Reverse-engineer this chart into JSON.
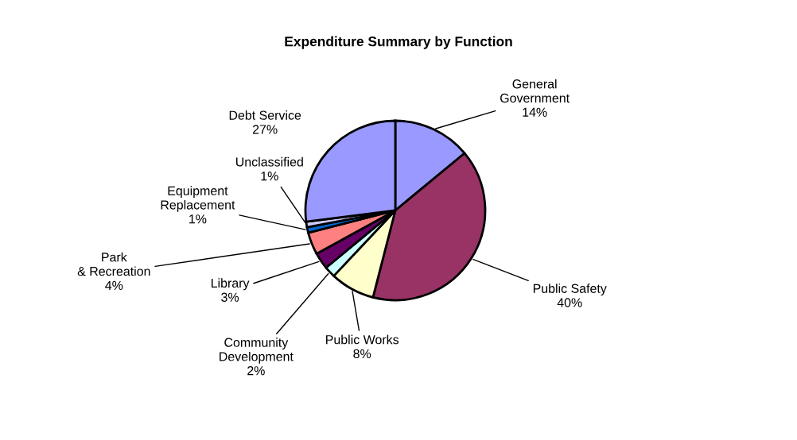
{
  "chart_data": {
    "type": "pie",
    "title": "Expenditure Summary by Function",
    "categories": [
      "General Government",
      "Public Safety",
      "Public Works",
      "Community Development",
      "Library",
      "Park & Recreation",
      "Equipment Replacement",
      "Unclassified",
      "Debt Service"
    ],
    "values": [
      14,
      40,
      8,
      2,
      3,
      4,
      1,
      1,
      27
    ],
    "value_labels": [
      "14%",
      "40%",
      "8%",
      "2%",
      "3%",
      "4%",
      "1%",
      "1%",
      "27%"
    ],
    "colors": [
      "#9999ff",
      "#993366",
      "#ffffcc",
      "#ccffff",
      "#660066",
      "#ff8080",
      "#0066cc",
      "#ccccff",
      "#9999ff"
    ],
    "legend": false
  }
}
